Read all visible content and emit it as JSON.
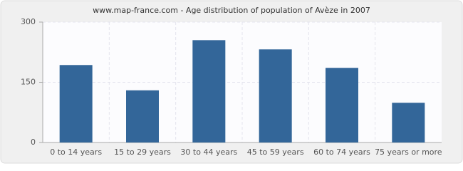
{
  "chart_data": {
    "type": "bar",
    "title": "www.map-france.com - Age distribution of population of Avèze in 2007",
    "categories": [
      "0 to 14 years",
      "15 to 29 years",
      "30 to 44 years",
      "45 to 59 years",
      "60 to 74 years",
      "75 years or more"
    ],
    "values": [
      193,
      130,
      255,
      232,
      186,
      99
    ],
    "color": "#336699",
    "ylim": [
      0,
      300
    ],
    "yticks": [
      0,
      150,
      300
    ],
    "grid": true
  }
}
